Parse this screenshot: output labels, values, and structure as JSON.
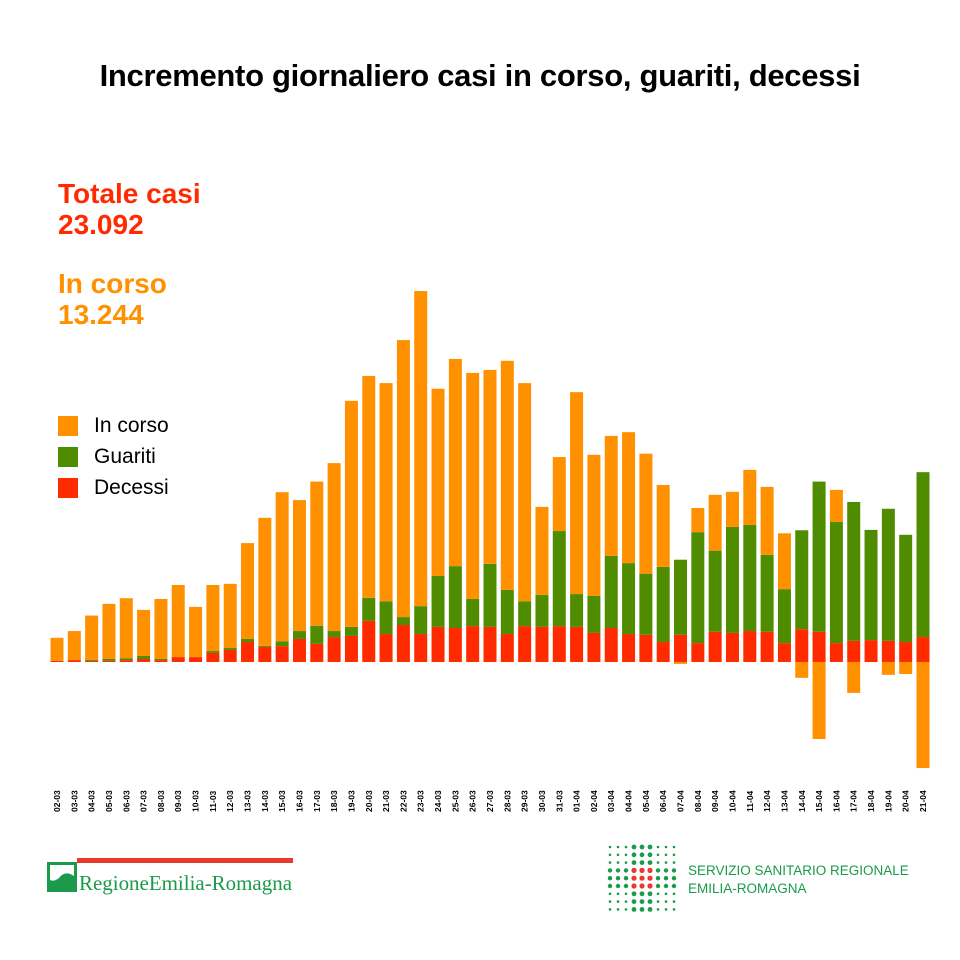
{
  "title": "Incremento giornaliero casi in corso, guariti, decessi",
  "stats": {
    "totale_label": "Totale casi",
    "totale_value": "23.092",
    "incorso_label": "In corso",
    "incorso_value": "13.244"
  },
  "colors": {
    "in_corso": "#ff9100",
    "guariti": "#4f8c00",
    "decessi": "#ff2a00",
    "totale": "#ff2a00",
    "incorso_text": "#ff9100",
    "logo_green": "#1a9a4a"
  },
  "logos": {
    "left": "RegioneEmilia-Romagna",
    "right_line1": "SERVIZIO SANITARIO REGIONALE",
    "right_line2": "EMILIA-ROMAGNA"
  },
  "chart_data": {
    "type": "bar",
    "stacked": true,
    "title": "Incremento giornaliero casi in corso, guariti, decessi",
    "xlabel": "",
    "ylabel": "",
    "ylim": [
      -300,
      1000
    ],
    "grid": false,
    "legend": "left",
    "categories": [
      "02-03",
      "03-03",
      "04-03",
      "05-03",
      "06-03",
      "07-03",
      "08-03",
      "09-03",
      "10-03",
      "11-03",
      "12-03",
      "13-03",
      "14-03",
      "15-03",
      "16-03",
      "17-03",
      "18-03",
      "19-03",
      "20-03",
      "21-03",
      "22-03",
      "23-03",
      "24-03",
      "25-03",
      "26-03",
      "27-03",
      "28-03",
      "29-03",
      "30-03",
      "31-03",
      "01-04",
      "02-04",
      "03-04",
      "04-04",
      "05-04",
      "06-04",
      "07-04",
      "08-04",
      "09-04",
      "10-04",
      "11-04",
      "12-04",
      "13-04",
      "14-04",
      "15-04",
      "16-04",
      "17-04",
      "18-04",
      "19-04",
      "20-04",
      "21-04"
    ],
    "series": [
      {
        "name": "Decessi",
        "color": "#ff2a00",
        "values": [
          3,
          5,
          3,
          3,
          5,
          8,
          5,
          13,
          13,
          24,
          32,
          53,
          40,
          42,
          61,
          48,
          66,
          69,
          109,
          74,
          98,
          74,
          93,
          90,
          95,
          93,
          74,
          95,
          93,
          95,
          93,
          77,
          90,
          74,
          72,
          53,
          72,
          50,
          80,
          77,
          82,
          80,
          50,
          87,
          80,
          50,
          56,
          58,
          56,
          53,
          66
        ]
      },
      {
        "name": "Guariti",
        "color": "#4f8c00",
        "values": [
          0,
          0,
          3,
          5,
          5,
          8,
          3,
          0,
          0,
          5,
          5,
          8,
          3,
          13,
          21,
          48,
          16,
          24,
          61,
          87,
          21,
          74,
          135,
          164,
          72,
          167,
          117,
          66,
          85,
          252,
          87,
          98,
          191,
          188,
          162,
          199,
          199,
          294,
          215,
          281,
          281,
          204,
          143,
          262,
          398,
          321,
          368,
          292,
          350,
          284,
          437
        ]
      },
      {
        "name": "In corso",
        "color": "#ff9100",
        "values": [
          61,
          77,
          117,
          146,
          159,
          122,
          159,
          191,
          133,
          175,
          170,
          254,
          339,
          395,
          347,
          382,
          445,
          599,
          588,
          578,
          734,
          835,
          496,
          549,
          599,
          514,
          607,
          578,
          233,
          196,
          535,
          374,
          318,
          347,
          318,
          217,
          -5,
          64,
          148,
          93,
          146,
          180,
          148,
          -42,
          -204,
          85,
          -82,
          0,
          -34,
          -32,
          -281
        ]
      }
    ]
  }
}
